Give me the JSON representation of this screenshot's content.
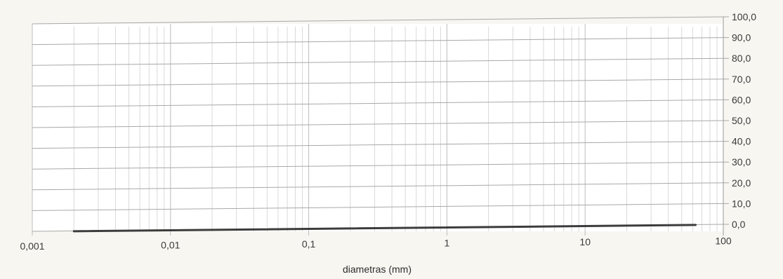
{
  "chart_data": {
    "type": "line",
    "title": "",
    "xlabel": "diametras (mm)",
    "ylabel": "",
    "x_scale": "log",
    "xlim": [
      0.001,
      100
    ],
    "ylim": [
      0,
      100
    ],
    "x_tick_labels": [
      "0,001",
      "0,01",
      "0,1",
      "1",
      "10",
      "100"
    ],
    "y_tick_labels": [
      "0,0",
      "10,0",
      "20,0",
      "30,0",
      "40,0",
      "50,0",
      "60,0",
      "70,0",
      "80,0",
      "90,0",
      "100,0"
    ],
    "y_axis_side": "right",
    "grid": true,
    "legend": "none",
    "series": [
      {
        "x": [
          0.002,
          63
        ],
        "y": [
          0,
          0
        ],
        "color": "#3c3c3c"
      }
    ]
  }
}
